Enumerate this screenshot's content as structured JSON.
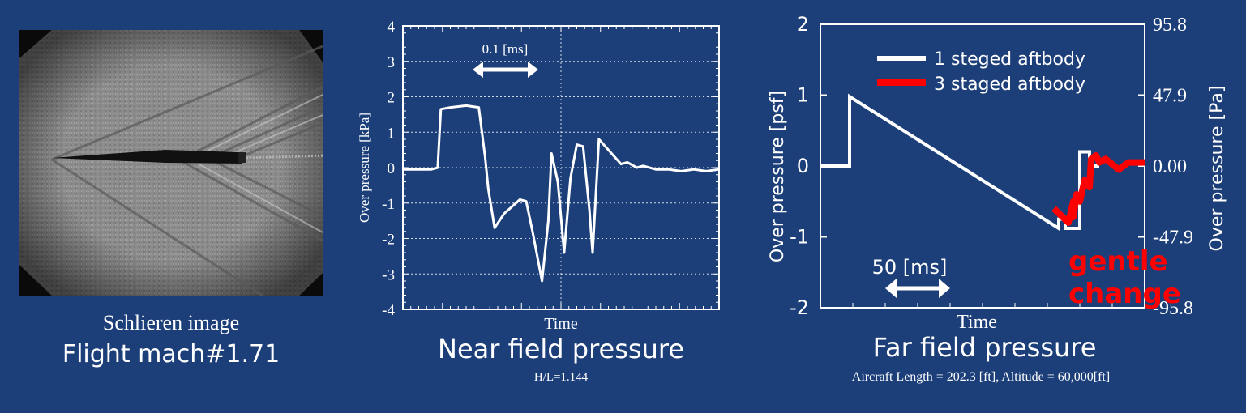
{
  "schlieren": {
    "caption": "Schlieren image",
    "flight_mach": "Flight mach#1.71"
  },
  "near_field": {
    "title": "Near field pressure",
    "subtitle": "H/L=1.144"
  },
  "far_field": {
    "title": "Far field pressure",
    "subtitle": "Aircraft Length = 202.3 [ft], Altitude = 60,000[ft]"
  },
  "colors": {
    "background": "#1c3f7a",
    "series_1": "#ffffff",
    "series_2": "#ff0000",
    "annotation": "#ff0000"
  },
  "chart_data": [
    {
      "type": "line",
      "title": "Near field pressure",
      "xlabel": "Time",
      "ylabel": "Over pressure [kPa]",
      "ylim": [
        -4,
        4
      ],
      "yticks": [
        "4",
        "3",
        "2",
        "1",
        "0",
        "-1",
        "-2",
        "-3",
        "-4"
      ],
      "grid": true,
      "annotation": "0.1 [ms]",
      "series": [
        {
          "x": [
            0,
            0.09,
            0.11,
            0.12,
            0.15,
            0.2,
            0.24,
            0.26,
            0.27,
            0.29,
            0.32,
            0.37,
            0.39,
            0.41,
            0.44,
            0.46,
            0.47,
            0.49,
            0.51,
            0.53,
            0.55,
            0.57,
            0.59,
            0.6,
            0.62,
            0.65,
            0.67,
            0.69,
            0.71,
            0.74,
            0.76,
            0.8,
            0.84,
            0.88,
            0.92,
            0.96,
            1.0
          ],
          "y": [
            -0.05,
            -0.05,
            0.0,
            1.65,
            1.7,
            1.75,
            1.7,
            0.3,
            -0.6,
            -1.7,
            -1.3,
            -0.9,
            -0.95,
            -1.8,
            -3.2,
            -1.5,
            0.4,
            -0.4,
            -2.4,
            -0.3,
            0.65,
            0.6,
            -1.2,
            -2.4,
            0.8,
            0.5,
            0.3,
            0.1,
            0.15,
            0.0,
            0.05,
            -0.05,
            -0.05,
            -0.1,
            -0.05,
            -0.1,
            -0.05
          ]
        }
      ]
    },
    {
      "type": "line",
      "title": "Far field pressure",
      "xlabel": "Time",
      "ylabel": "Over pressure [psf]",
      "ylim": [
        -2,
        2
      ],
      "yticks": [
        "2",
        "1",
        "0",
        "-1",
        "-2"
      ],
      "y2label": "Over pressure [Pa]",
      "y2ticks": [
        "95.8",
        "47.9",
        "0.00",
        "-47.9",
        "-95.8"
      ],
      "grid": false,
      "annotation": "50 [ms]",
      "callout": "gentle change",
      "legend": "top-right",
      "series": [
        {
          "name": "1 steged aftbody",
          "x": [
            0,
            0.09,
            0.09,
            0.735,
            0.735,
            0.755,
            0.755,
            0.8,
            0.8,
            0.83,
            0.83,
            0.86
          ],
          "y": [
            0,
            0,
            0.98,
            -0.88,
            -0.75,
            -0.75,
            -0.88,
            -0.88,
            0.2,
            0.2,
            0,
            0
          ]
        },
        {
          "name": "3 staged aftbody",
          "x": [
            0.72,
            0.765,
            0.78,
            0.78,
            0.79,
            0.8,
            0.815,
            0.83,
            0.835,
            0.85,
            0.86,
            0.88,
            0.92,
            0.95,
            1.0
          ],
          "y": [
            -0.6,
            -0.8,
            -0.5,
            -0.72,
            -0.4,
            -0.5,
            -0.2,
            -0.3,
            0.1,
            0.15,
            0.05,
            0.1,
            -0.05,
            0.05,
            0.05
          ]
        }
      ]
    }
  ]
}
